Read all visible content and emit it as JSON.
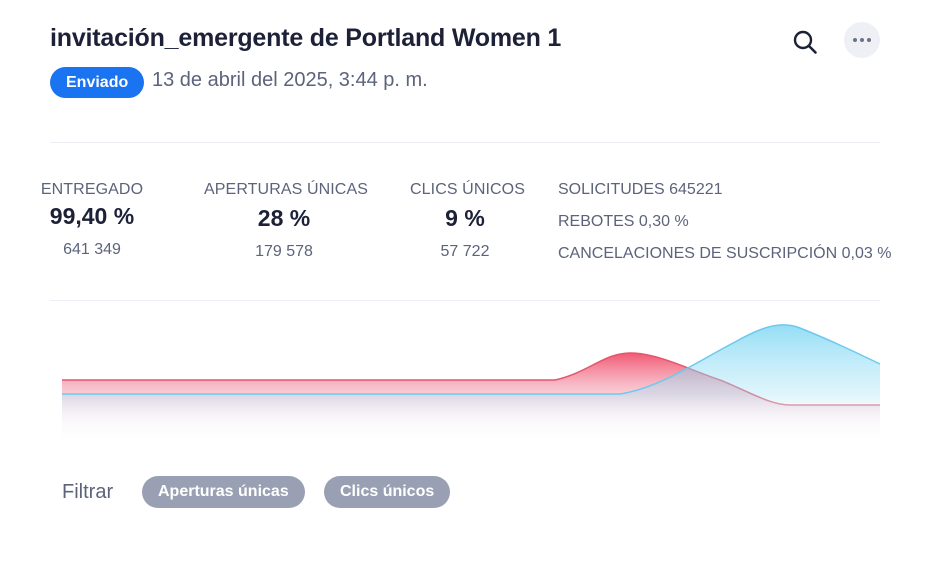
{
  "header": {
    "title": "invitación_emergente de Portland Women 1",
    "status": "Enviado",
    "sent_date": "13 de abril del 2025, 3:44 p. m."
  },
  "stats": [
    {
      "label": "ENTREGADO",
      "value": "99,40 %",
      "count": "641 349"
    },
    {
      "label": "APERTURAS ÚNICAS",
      "value": "28 %",
      "count": "179 578"
    },
    {
      "label": "CLICS ÚNICOS",
      "value": "9 %",
      "count": "57 722"
    }
  ],
  "side_stats": {
    "requests": "SOLICITUDES 645221",
    "bounces": "REBOTES 0,30 %",
    "unsubscribes": "CANCELACIONES DE SUSCRIPCIÓN 0,03 %"
  },
  "filter": {
    "label": "Filtrar",
    "chips": [
      "Aperturas únicas",
      "Clics únicos"
    ]
  },
  "colors": {
    "accent": "#1a73f0",
    "series_red": "#f0506a",
    "series_blue": "#5fcdf0",
    "chip": "#9aa0b3"
  },
  "icons": {
    "search": "search-icon",
    "more": "more-horizontal-icon"
  }
}
